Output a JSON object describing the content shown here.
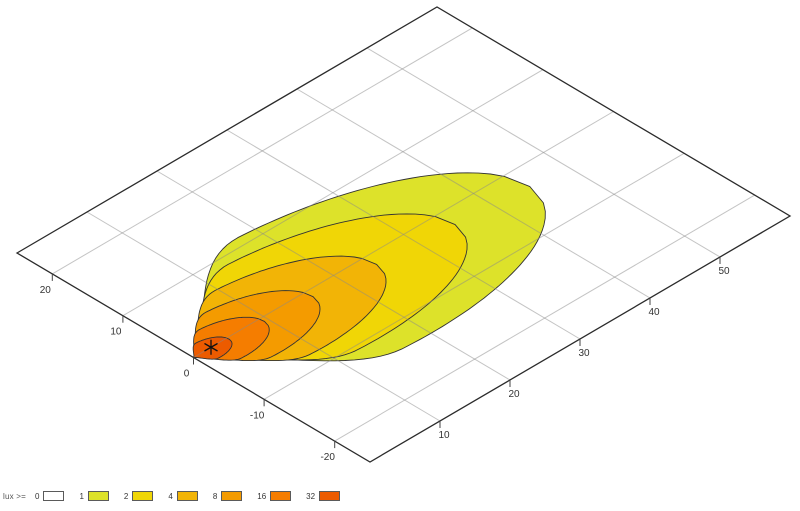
{
  "legend": {
    "title": "lux >=",
    "items": [
      {
        "label": "0",
        "color": "#ffffff"
      },
      {
        "label": "1",
        "color": "#dde22a"
      },
      {
        "label": "2",
        "color": "#f0d606"
      },
      {
        "label": "4",
        "color": "#f2b406"
      },
      {
        "label": "8",
        "color": "#f49b00"
      },
      {
        "label": "16",
        "color": "#f57d00"
      },
      {
        "label": "32",
        "color": "#ec5b00"
      }
    ]
  },
  "chart_data": {
    "type": "contour",
    "title": "",
    "description": "Isolux contour plot of illuminance (lux) on a tilted ground plane, nested teardrop contours converging at the source point",
    "grid": true,
    "x_axis": {
      "ticks": [
        10,
        20,
        30,
        40,
        50
      ],
      "range": [
        0,
        60
      ]
    },
    "y_axis": {
      "ticks": [
        20,
        10,
        0,
        -10,
        -20
      ],
      "range": [
        -25,
        25
      ]
    },
    "projection": {
      "origin": [
        193.5,
        357.5
      ],
      "a_vec": [
        7.0,
        -4.1
      ],
      "b_vec": [
        -7.06,
        -4.18
      ]
    },
    "levels": [
      {
        "lux": 1,
        "length": 45.0,
        "half_width": 12.5,
        "color": "#dde22a"
      },
      {
        "lux": 2,
        "length": 35.0,
        "half_width": 9.7,
        "color": "#f0d606"
      },
      {
        "lux": 4,
        "length": 24.5,
        "half_width": 7.2,
        "color": "#f2b406"
      },
      {
        "lux": 8,
        "length": 16.0,
        "half_width": 5.0,
        "color": "#f49b00"
      },
      {
        "lux": 16,
        "length": 9.5,
        "half_width": 3.2,
        "color": "#f57d00"
      },
      {
        "lux": 32,
        "length": 4.8,
        "half_width": 1.7,
        "color": "#ec5b00"
      }
    ],
    "tilt_deg": -4,
    "profile": {
      "peak_pos": 0.38,
      "tip_exp": 1.3
    },
    "marker": {
      "symbol": "asterisk",
      "a": 2.5,
      "b": 0
    },
    "styles": {
      "border_color": "#2b2b2b",
      "grid_color": "#8a8a8a",
      "grid_opacity": 0.5,
      "contour_stroke": "#333333",
      "tick_color": "#444444",
      "marker_color": "#111111"
    }
  }
}
